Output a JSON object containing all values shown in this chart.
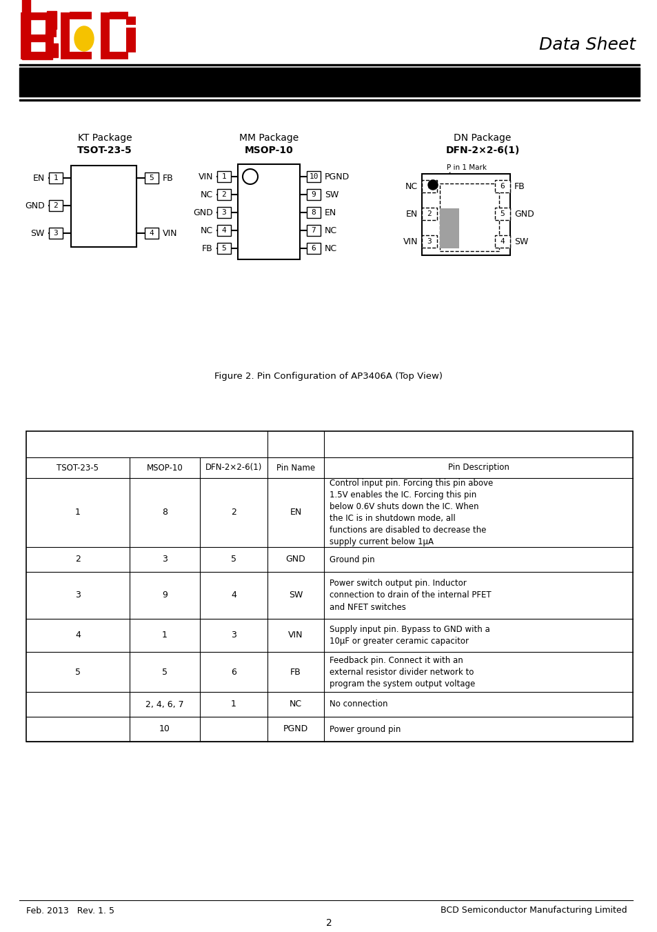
{
  "title": "Data Sheet",
  "fig_caption": "Figure 2. Pin Configuration of AP3406A (Top View)",
  "footer_left": "Feb. 2013   Rev. 1. 5",
  "footer_right": "BCD Semiconductor Manufacturing Limited",
  "footer_page": "2",
  "kt_package_title": "KT Package",
  "kt_package_sub": "TSOT-23-5",
  "mm_package_title": "MM Package",
  "mm_package_sub": "MSOP-10",
  "dn_package_title": "DN Package",
  "dn_package_sub": "DFN-2×2-6(1)",
  "pin1_mark": "P in 1 Mark",
  "table_col2_header": "TSOT-23-5",
  "table_col3_header": "MSOP-10",
  "table_col4_header": "DFN-2×2-6(1)",
  "table_col5_header": "Pin Name",
  "table_col6_header": "Pin Description",
  "table_rows": [
    {
      "kt": "1",
      "mm": "8",
      "dn": "2",
      "name": "EN",
      "desc": "Control input pin. Forcing this pin above\n1.5V enables the IC. Forcing this pin\nbelow 0.6V shuts down the IC. When\nthe IC is in shutdown mode, all\nfunctions are disabled to decrease the\nsupply current below 1μA"
    },
    {
      "kt": "2",
      "mm": "3",
      "dn": "5",
      "name": "GND",
      "desc": "Ground pin"
    },
    {
      "kt": "3",
      "mm": "9",
      "dn": "4",
      "name": "SW",
      "desc": "Power switch output pin. Inductor\nconnection to drain of the internal PFET\nand NFET switches"
    },
    {
      "kt": "4",
      "mm": "1",
      "dn": "3",
      "name": "VIN",
      "desc": "Supply input pin. Bypass to GND with a\n10μF or greater ceramic capacitor"
    },
    {
      "kt": "5",
      "mm": "5",
      "dn": "6",
      "name": "FB",
      "desc": "Feedback pin. Connect it with an\nexternal resistor divider network to\nprogram the system output voltage"
    },
    {
      "kt": "",
      "mm": "2, 4, 6, 7",
      "dn": "1",
      "name": "NC",
      "desc": "No connection"
    },
    {
      "kt": "",
      "mm": "10",
      "dn": "",
      "name": "PGND",
      "desc": "Power ground pin"
    }
  ],
  "background_color": "#ffffff"
}
